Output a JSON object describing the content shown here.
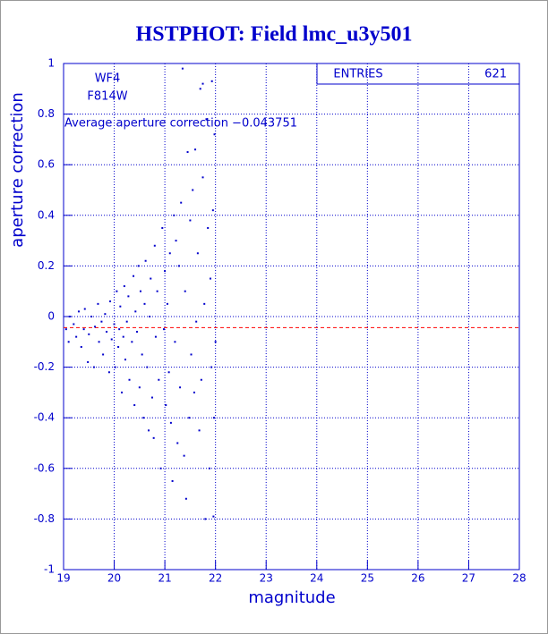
{
  "chart_data": {
    "type": "scatter",
    "title": "HSTPHOT: Field lmc_u3y501",
    "x_label": "magnitude",
    "y_label": "aperture correction",
    "annotations": [
      "WF4",
      "F814W"
    ],
    "average": {
      "value": -0.043751,
      "label": "Average aperture correction −0.043751",
      "color": "#ff0000"
    },
    "stats": {
      "label": "ENTRIES",
      "value": 621
    },
    "xlim": [
      19,
      28
    ],
    "xticks": [
      19,
      20,
      21,
      22,
      23,
      24,
      25,
      26,
      27,
      28
    ],
    "ylim": [
      -1,
      1
    ],
    "yticks": [
      -1,
      -0.8,
      -0.6,
      -0.4,
      -0.2,
      0,
      0.2,
      0.4,
      0.6,
      0.8,
      1
    ],
    "grid": true,
    "color": "#0000cc",
    "x": [
      19.05,
      19.1,
      19.12,
      19.2,
      19.25,
      19.3,
      19.35,
      19.4,
      19.42,
      19.48,
      19.5,
      19.55,
      19.6,
      19.62,
      19.68,
      19.7,
      19.75,
      19.78,
      19.82,
      19.85,
      19.9,
      19.92,
      19.95,
      20.0,
      20.02,
      20.05,
      20.08,
      20.1,
      20.12,
      20.15,
      20.18,
      20.2,
      20.22,
      20.25,
      20.28,
      20.3,
      20.35,
      20.38,
      20.4,
      20.42,
      20.45,
      20.48,
      20.5,
      20.52,
      20.55,
      20.58,
      20.6,
      20.62,
      20.65,
      20.68,
      20.7,
      20.72,
      20.75,
      20.78,
      20.8,
      20.82,
      20.85,
      20.88,
      20.92,
      20.95,
      20.98,
      21.0,
      21.02,
      21.05,
      21.08,
      21.1,
      21.12,
      21.15,
      21.18,
      21.2,
      21.22,
      21.25,
      21.28,
      21.3,
      21.32,
      21.35,
      21.38,
      21.4,
      21.42,
      21.45,
      21.48,
      21.5,
      21.52,
      21.55,
      21.58,
      21.6,
      21.62,
      21.65,
      21.68,
      21.7,
      21.72,
      21.75,
      21.78,
      21.8,
      21.82,
      21.85,
      21.88,
      21.9,
      21.92,
      21.95,
      21.97,
      21.98,
      22.0,
      21.96,
      21.93,
      21.75
    ],
    "y": [
      -0.05,
      -0.1,
      0.0,
      -0.03,
      -0.08,
      0.02,
      -0.12,
      -0.05,
      0.03,
      -0.18,
      -0.07,
      0.0,
      -0.2,
      -0.04,
      0.05,
      -0.1,
      -0.02,
      -0.15,
      0.01,
      -0.06,
      -0.22,
      0.06,
      -0.09,
      -0.03,
      -0.2,
      0.1,
      -0.12,
      -0.05,
      0.04,
      -0.3,
      -0.08,
      0.12,
      -0.17,
      -0.02,
      0.08,
      -0.25,
      -0.1,
      0.16,
      -0.35,
      0.02,
      -0.06,
      0.2,
      -0.28,
      0.1,
      -0.15,
      -0.4,
      0.05,
      0.22,
      -0.2,
      -0.45,
      0.0,
      0.15,
      -0.32,
      -0.48,
      0.28,
      -0.08,
      0.1,
      -0.25,
      -0.6,
      0.35,
      -0.05,
      0.18,
      -0.35,
      0.05,
      -0.22,
      0.25,
      -0.42,
      -0.65,
      0.4,
      -0.1,
      0.3,
      -0.5,
      0.2,
      -0.28,
      0.45,
      0.98,
      -0.55,
      0.1,
      -0.72,
      0.65,
      -0.4,
      0.38,
      -0.15,
      0.5,
      -0.3,
      0.66,
      -0.02,
      0.25,
      -0.45,
      0.9,
      -0.25,
      0.55,
      0.05,
      -0.8,
      0.78,
      0.35,
      -0.6,
      0.15,
      -0.2,
      0.42,
      -0.4,
      0.72,
      -0.1,
      -0.79,
      0.93,
      0.92
    ]
  }
}
